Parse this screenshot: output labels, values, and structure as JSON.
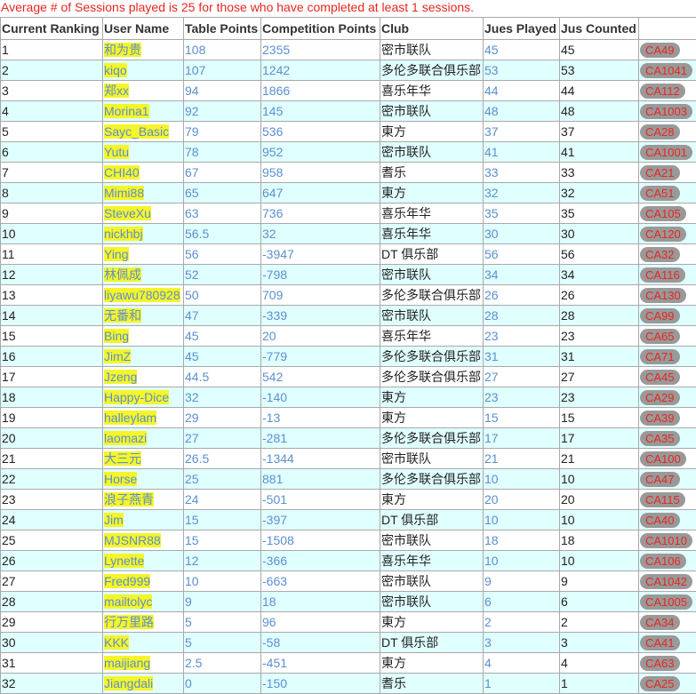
{
  "notice": "Average # of Sessions played is 25 for those who have completed at least 1 sessions.",
  "headers": [
    "Current Ranking",
    "User Name",
    "Table Points",
    "Competition Points",
    "Club",
    "Jues Played",
    "Jus Counted",
    ""
  ],
  "rows": [
    {
      "rank": "1",
      "user": "和为贵",
      "table": "108",
      "comp": "2355",
      "club": "密市联队",
      "played": "45",
      "counted": "45",
      "badge": "CA49"
    },
    {
      "rank": "2",
      "user": "kiqo",
      "table": "107",
      "comp": "1242",
      "club": "多伦多联合俱乐部",
      "played": "53",
      "counted": "53",
      "badge": "CA1041"
    },
    {
      "rank": "3",
      "user": "郑xx",
      "table": "94",
      "comp": "1866",
      "club": "喜乐年华",
      "played": "44",
      "counted": "44",
      "badge": "CA112"
    },
    {
      "rank": "4",
      "user": "Morina1",
      "table": "92",
      "comp": "145",
      "club": "密市联队",
      "played": "48",
      "counted": "48",
      "badge": "CA1003"
    },
    {
      "rank": "5",
      "user": "Sayc_Basic",
      "table": "79",
      "comp": "536",
      "club": "東方",
      "played": "37",
      "counted": "37",
      "badge": "CA28"
    },
    {
      "rank": "6",
      "user": "Yutu",
      "table": "78",
      "comp": "952",
      "club": "密市联队",
      "played": "41",
      "counted": "41",
      "badge": "CA1001"
    },
    {
      "rank": "7",
      "user": "CHI40",
      "table": "67",
      "comp": "958",
      "club": "耆乐",
      "played": "33",
      "counted": "33",
      "badge": "CA21"
    },
    {
      "rank": "8",
      "user": "Mimi88",
      "table": "65",
      "comp": "647",
      "club": "東方",
      "played": "32",
      "counted": "32",
      "badge": "CA51"
    },
    {
      "rank": "9",
      "user": "SteveXu",
      "table": "63",
      "comp": "736",
      "club": "喜乐年华",
      "played": "35",
      "counted": "35",
      "badge": "CA105"
    },
    {
      "rank": "10",
      "user": "nickhbj",
      "table": "56.5",
      "comp": "32",
      "club": "喜乐年华",
      "played": "30",
      "counted": "30",
      "badge": "CA120"
    },
    {
      "rank": "11",
      "user": "Ying",
      "table": "56",
      "comp": "-3947",
      "club": "DT 俱乐部",
      "played": "56",
      "counted": "56",
      "badge": "CA32"
    },
    {
      "rank": "12",
      "user": "林佩成",
      "table": "52",
      "comp": "-798",
      "club": "密市联队",
      "played": "34",
      "counted": "34",
      "badge": "CA116"
    },
    {
      "rank": "13",
      "user": "liyawu780928",
      "table": "50",
      "comp": "709",
      "club": "多伦多联合俱乐部",
      "played": "26",
      "counted": "26",
      "badge": "CA130"
    },
    {
      "rank": "14",
      "user": "无番和",
      "table": "47",
      "comp": "-339",
      "club": "密市联队",
      "played": "28",
      "counted": "28",
      "badge": "CA99"
    },
    {
      "rank": "15",
      "user": "Bing",
      "table": "45",
      "comp": "20",
      "club": "喜乐年华",
      "played": "23",
      "counted": "23",
      "badge": "CA65"
    },
    {
      "rank": "16",
      "user": "JimZ",
      "table": "45",
      "comp": "-779",
      "club": "多伦多联合俱乐部",
      "played": "31",
      "counted": "31",
      "badge": "CA71"
    },
    {
      "rank": "17",
      "user": "Jzeng",
      "table": "44.5",
      "comp": "542",
      "club": "多伦多联合俱乐部",
      "played": "27",
      "counted": "27",
      "badge": "CA45"
    },
    {
      "rank": "18",
      "user": "Happy-Dice",
      "table": "32",
      "comp": "-140",
      "club": "東方",
      "played": "23",
      "counted": "23",
      "badge": "CA29"
    },
    {
      "rank": "19",
      "user": "halleylam",
      "table": "29",
      "comp": "-13",
      "club": "東方",
      "played": "15",
      "counted": "15",
      "badge": "CA39"
    },
    {
      "rank": "20",
      "user": "laomazi",
      "table": "27",
      "comp": "-281",
      "club": "多伦多联合俱乐部",
      "played": "17",
      "counted": "17",
      "badge": "CA35"
    },
    {
      "rank": "21",
      "user": "大三元",
      "table": "26.5",
      "comp": "-1344",
      "club": "密市联队",
      "played": "21",
      "counted": "21",
      "badge": "CA100"
    },
    {
      "rank": "22",
      "user": "Horse",
      "table": "25",
      "comp": "881",
      "club": "多伦多联合俱乐部",
      "played": "10",
      "counted": "10",
      "badge": "CA47"
    },
    {
      "rank": "23",
      "user": "浪子燕青",
      "table": "24",
      "comp": "-501",
      "club": "東方",
      "played": "20",
      "counted": "20",
      "badge": "CA115"
    },
    {
      "rank": "24",
      "user": "Jim",
      "table": "15",
      "comp": "-397",
      "club": "DT 俱乐部",
      "played": "10",
      "counted": "10",
      "badge": "CA40"
    },
    {
      "rank": "25",
      "user": "MJSNR88",
      "table": "15",
      "comp": "-1508",
      "club": "密市联队",
      "played": "18",
      "counted": "18",
      "badge": "CA1010"
    },
    {
      "rank": "26",
      "user": "Lynette",
      "table": "12",
      "comp": "-366",
      "club": "喜乐年华",
      "played": "10",
      "counted": "10",
      "badge": "CA106"
    },
    {
      "rank": "27",
      "user": "Fred999",
      "table": "10",
      "comp": "-663",
      "club": "密市联队",
      "played": "9",
      "counted": "9",
      "badge": "CA1042"
    },
    {
      "rank": "28",
      "user": "mailtolyc",
      "table": "9",
      "comp": "18",
      "club": "密市联队",
      "played": "6",
      "counted": "6",
      "badge": "CA1005"
    },
    {
      "rank": "29",
      "user": "行万里路",
      "table": "5",
      "comp": "96",
      "club": "東方",
      "played": "2",
      "counted": "2",
      "badge": "CA34"
    },
    {
      "rank": "30",
      "user": "KKK",
      "table": "5",
      "comp": "-58",
      "club": "DT 俱乐部",
      "played": "3",
      "counted": "3",
      "badge": "CA41"
    },
    {
      "rank": "31",
      "user": "maijiang",
      "table": "2.5",
      "comp": "-451",
      "club": "東方",
      "played": "4",
      "counted": "4",
      "badge": "CA63"
    },
    {
      "rank": "32",
      "user": "Jiangdali",
      "table": "0",
      "comp": "-150",
      "club": "耆乐",
      "played": "1",
      "counted": "1",
      "badge": "CA25"
    }
  ],
  "colors": {
    "notice": "#e8261f",
    "row_alt": "#e0ffff",
    "username_highlight": "#f5f52a",
    "link": "#5b8fd0",
    "badge_bg": "#999999",
    "badge_text": "#e8261f",
    "border": "#a9a9a9"
  }
}
